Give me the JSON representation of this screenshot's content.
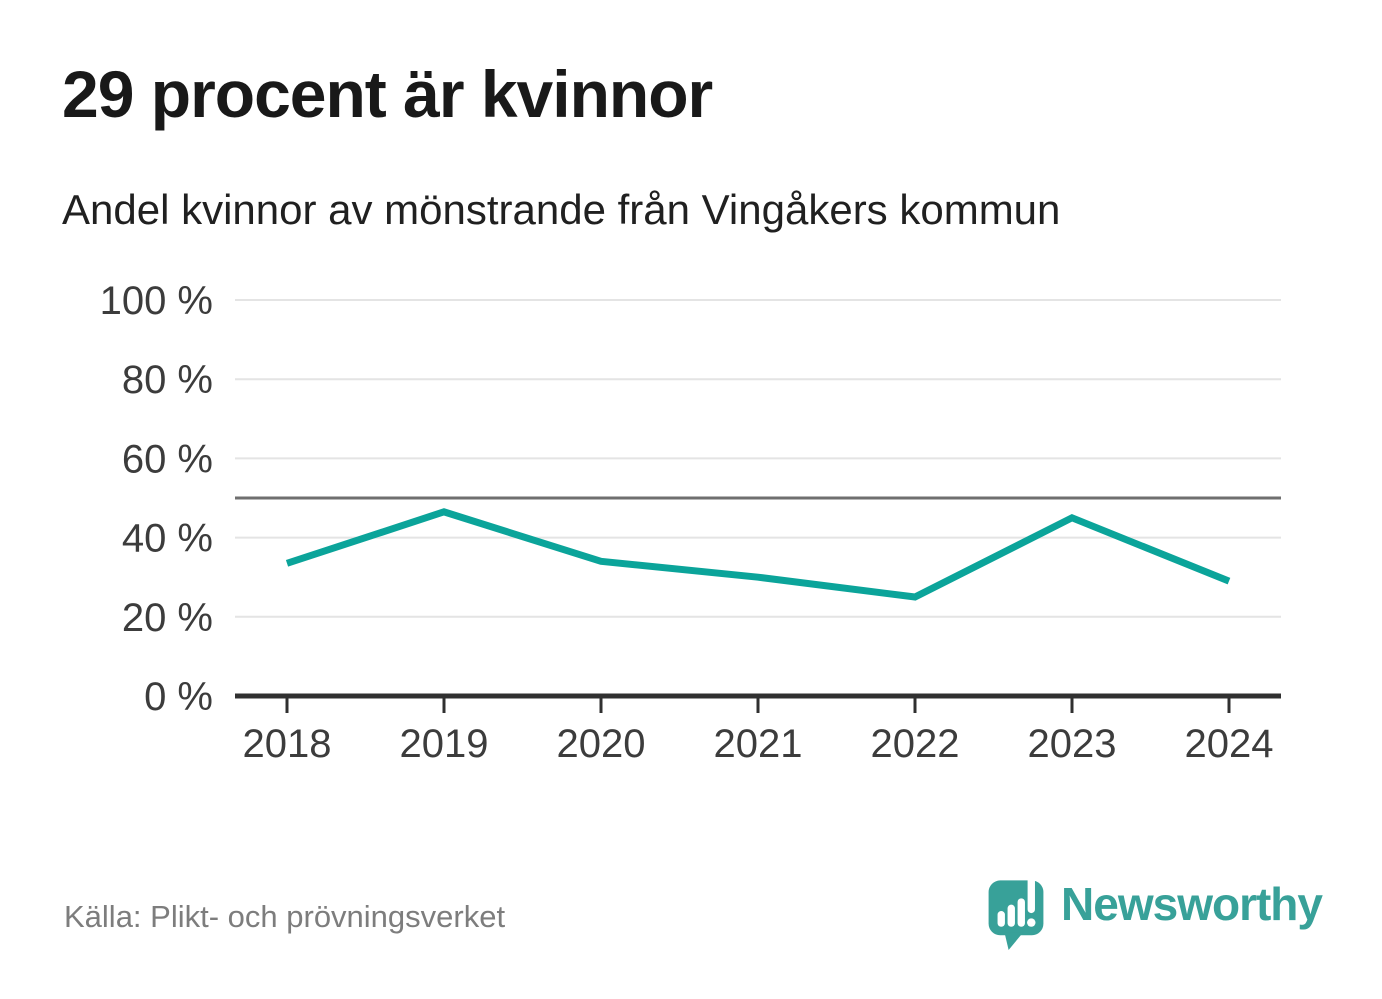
{
  "header": {
    "title": "29 procent är kvinnor",
    "subtitle": "Andel kvinnor av mönstrande från Vingåkers kommun"
  },
  "footer": {
    "source": "Källa: Plikt- och prövningsverket",
    "brand": "Newsworthy",
    "logo_icon": "newsworthy-speech-bubble-bar-chart-exclamation"
  },
  "colors": {
    "line": "#0ba49a",
    "grid": "#e4e4e4",
    "reference": "#6f6f6f",
    "axis": "#303030",
    "tick_label": "#3c3c3c",
    "title": "#191919",
    "subtitle": "#202020",
    "source": "#7d7d7d",
    "brand": "#38a199"
  },
  "chart_data": {
    "type": "line",
    "x": [
      2018,
      2019,
      2020,
      2021,
      2022,
      2023,
      2024
    ],
    "series": [
      {
        "name": "Andel kvinnor av mönstrande",
        "values": [
          33.5,
          46.5,
          34,
          30,
          25,
          45,
          29
        ]
      }
    ],
    "title": "29 procent är kvinnor",
    "subtitle": "Andel kvinnor av mönstrande från Vingåkers kommun",
    "xlabel": "",
    "ylabel": "",
    "ylim": [
      0,
      100
    ],
    "yticks": [
      0,
      20,
      40,
      60,
      80,
      100
    ],
    "ytick_suffix": " %",
    "reference_line": 50,
    "grid": true,
    "legend": false,
    "marker": "none",
    "line_width": 7
  }
}
